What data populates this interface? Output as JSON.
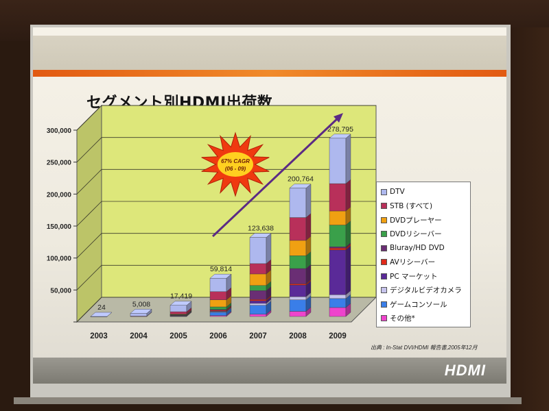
{
  "slide": {
    "title": "セグメント別HDMI出荷数",
    "source": "出典 : In-Stat DVI/HDMI 報告書,2005年12月",
    "logo_text": "HDMI",
    "burst_text": "67% CAGR\n(06 - 09)"
  },
  "colors": {
    "plot_background": "#dde77a",
    "orange_accent": "#e86a1c",
    "arrow": "#5b2a85",
    "burst_fill": "#ef3a10",
    "burst_center": "#ffd020"
  },
  "chart_data": {
    "type": "bar",
    "stacked": true,
    "three_d": true,
    "categories": [
      "2003",
      "2004",
      "2005",
      "2006",
      "2007",
      "2008",
      "2009"
    ],
    "totals": [
      24,
      5008,
      17419,
      59814,
      123638,
      200764,
      278795
    ],
    "total_labels": [
      "24",
      "5,008",
      "17,419",
      "59,814",
      "123,638",
      "200,764",
      "278,795"
    ],
    "ylim": [
      0,
      300000
    ],
    "yticks": [
      0,
      50000,
      100000,
      150000,
      200000,
      250000,
      300000
    ],
    "ytick_labels": [
      "",
      "50,000",
      "100,000",
      "150,000",
      "200,000",
      "250,000",
      "300,000"
    ],
    "grid": true,
    "legend_position": "right",
    "series": [
      {
        "name": "その他*",
        "color": "#ee44cc",
        "values": [
          0,
          0,
          500,
          1500,
          3500,
          8000,
          14000
        ]
      },
      {
        "name": "ゲームコンソール",
        "color": "#3a7ee8",
        "values": [
          0,
          0,
          500,
          5000,
          14000,
          18000,
          14000
        ]
      },
      {
        "name": "デジタルビデオカメラ",
        "color": "#c6c3ec",
        "values": [
          0,
          0,
          500,
          1000,
          3000,
          5000,
          6000
        ]
      },
      {
        "name": "PC マーケット",
        "color": "#5a2a98",
        "values": [
          0,
          0,
          500,
          1000,
          4000,
          18000,
          70000
        ]
      },
      {
        "name": "AVリシーバー",
        "color": "#e02a1a",
        "values": [
          0,
          0,
          500,
          1500,
          2000,
          2000,
          3000
        ]
      },
      {
        "name": "Bluray/HD DVD",
        "color": "#6a2e74",
        "values": [
          0,
          0,
          300,
          1000,
          14000,
          24000,
          2000
        ]
      },
      {
        "name": "DVDリシーバー",
        "color": "#3aa04a",
        "values": [
          0,
          0,
          300,
          4000,
          8000,
          20000,
          34000
        ]
      },
      {
        "name": "DVDプレーヤー",
        "color": "#f0a012",
        "values": [
          0,
          0,
          700,
          11000,
          18000,
          24000,
          22000
        ]
      },
      {
        "name": "STB (すべて)",
        "color": "#b8305a",
        "values": [
          0,
          508,
          3619,
          12814,
          16138,
          35764,
          42795
        ]
      },
      {
        "name": "DTV",
        "color": "#aeb8ee",
        "values": [
          24,
          4500,
          10000,
          21000,
          41000,
          46000,
          71000
        ]
      }
    ]
  }
}
